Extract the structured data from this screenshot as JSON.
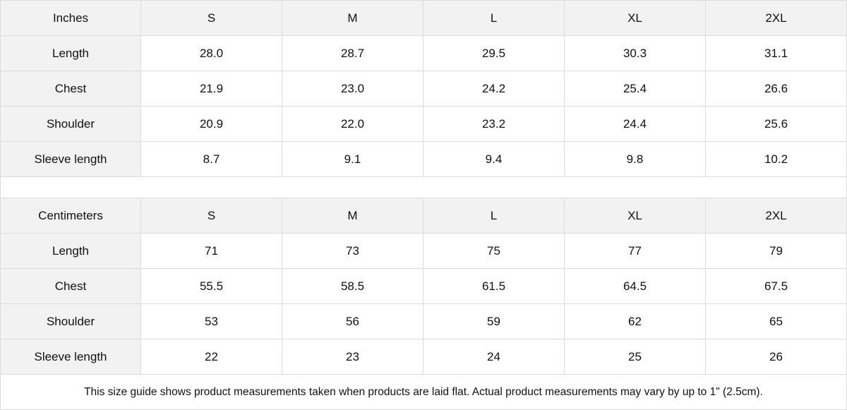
{
  "tables": [
    {
      "unit": "Inches",
      "sizes": [
        "S",
        "M",
        "L",
        "XL",
        "2XL"
      ],
      "rows": [
        {
          "label": "Length",
          "values": [
            "28.0",
            "28.7",
            "29.5",
            "30.3",
            "31.1"
          ]
        },
        {
          "label": "Chest",
          "values": [
            "21.9",
            "23.0",
            "24.2",
            "25.4",
            "26.6"
          ]
        },
        {
          "label": "Shoulder",
          "values": [
            "20.9",
            "22.0",
            "23.2",
            "24.4",
            "25.6"
          ]
        },
        {
          "label": "Sleeve length",
          "values": [
            "8.7",
            "9.1",
            "9.4",
            "9.8",
            "10.2"
          ]
        }
      ]
    },
    {
      "unit": "Centimeters",
      "sizes": [
        "S",
        "M",
        "L",
        "XL",
        "2XL"
      ],
      "rows": [
        {
          "label": "Length",
          "values": [
            "71",
            "73",
            "75",
            "77",
            "79"
          ]
        },
        {
          "label": "Chest",
          "values": [
            "55.5",
            "58.5",
            "61.5",
            "64.5",
            "67.5"
          ]
        },
        {
          "label": "Shoulder",
          "values": [
            "53",
            "56",
            "59",
            "62",
            "65"
          ]
        },
        {
          "label": "Sleeve length",
          "values": [
            "22",
            "23",
            "24",
            "25",
            "26"
          ]
        }
      ]
    }
  ],
  "footnote": "This size guide shows product measurements taken when products are laid flat.  Actual product measurements may vary by up to 1\" (2.5cm)."
}
